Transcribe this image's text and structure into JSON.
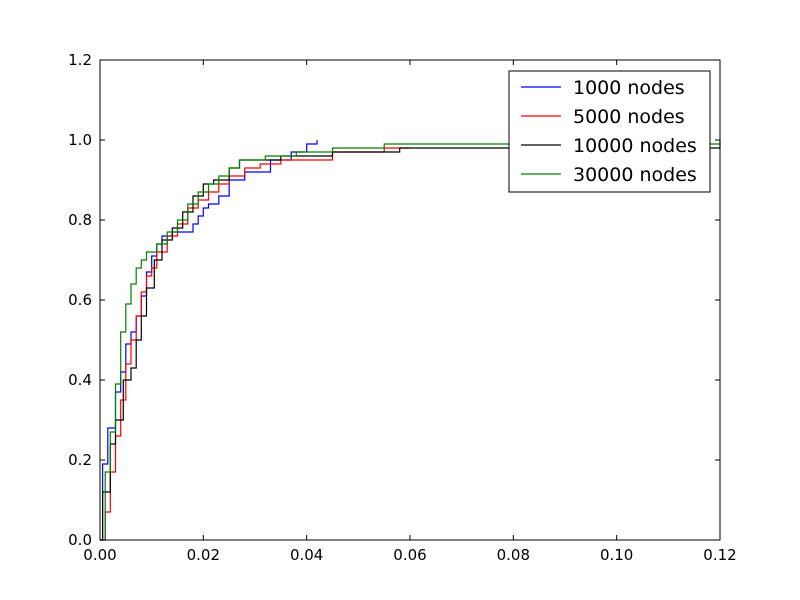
{
  "chart_data": {
    "type": "line",
    "title": "",
    "xlabel": "",
    "ylabel": "",
    "xlim": [
      0.0,
      0.12
    ],
    "ylim": [
      0.0,
      1.2
    ],
    "xticks": [
      "0.00",
      "0.02",
      "0.04",
      "0.06",
      "0.08",
      "0.10",
      "0.12"
    ],
    "yticks": [
      "0.0",
      "0.2",
      "0.4",
      "0.6",
      "0.8",
      "1.0",
      "1.2"
    ],
    "grid": false,
    "legend_position": "top-right",
    "series": [
      {
        "name": "1000 nodes",
        "color": "#0000ff",
        "x": [
          0.0,
          0.0005,
          0.0015,
          0.003,
          0.004,
          0.005,
          0.006,
          0.007,
          0.008,
          0.009,
          0.01,
          0.011,
          0.012,
          0.014,
          0.016,
          0.018,
          0.019,
          0.02,
          0.021,
          0.023,
          0.025,
          0.028,
          0.033,
          0.037,
          0.04,
          0.042
        ],
        "y": [
          0.0,
          0.19,
          0.28,
          0.37,
          0.42,
          0.49,
          0.52,
          0.56,
          0.61,
          0.67,
          0.71,
          0.74,
          0.76,
          0.77,
          0.77,
          0.79,
          0.81,
          0.83,
          0.84,
          0.86,
          0.9,
          0.92,
          0.95,
          0.97,
          0.99,
          1.0
        ]
      },
      {
        "name": "5000 nodes",
        "color": "#ff0000",
        "x": [
          0.0,
          0.001,
          0.002,
          0.003,
          0.004,
          0.005,
          0.006,
          0.007,
          0.008,
          0.009,
          0.01,
          0.011,
          0.013,
          0.015,
          0.017,
          0.019,
          0.021,
          0.023,
          0.025,
          0.028,
          0.031,
          0.035,
          0.045,
          0.055,
          0.06
        ],
        "y": [
          0.0,
          0.07,
          0.17,
          0.26,
          0.35,
          0.44,
          0.5,
          0.56,
          0.62,
          0.66,
          0.68,
          0.72,
          0.76,
          0.79,
          0.83,
          0.85,
          0.87,
          0.89,
          0.91,
          0.93,
          0.94,
          0.95,
          0.97,
          0.98,
          0.98
        ]
      },
      {
        "name": "10000 nodes",
        "color": "#000000",
        "x": [
          0.0,
          0.0005,
          0.002,
          0.003,
          0.0045,
          0.006,
          0.007,
          0.008,
          0.009,
          0.0105,
          0.012,
          0.014,
          0.016,
          0.018,
          0.02,
          0.022,
          0.025,
          0.027,
          0.03,
          0.035,
          0.04,
          0.045,
          0.055,
          0.058,
          0.07,
          0.12
        ],
        "y": [
          0.0,
          0.12,
          0.24,
          0.3,
          0.4,
          0.43,
          0.5,
          0.56,
          0.63,
          0.7,
          0.75,
          0.78,
          0.82,
          0.86,
          0.89,
          0.9,
          0.93,
          0.95,
          0.95,
          0.96,
          0.96,
          0.97,
          0.97,
          0.98,
          0.98,
          1.0
        ]
      },
      {
        "name": "30000 nodes",
        "color": "#008000",
        "x": [
          0.0,
          0.001,
          0.002,
          0.003,
          0.004,
          0.005,
          0.006,
          0.007,
          0.008,
          0.009,
          0.011,
          0.013,
          0.015,
          0.017,
          0.019,
          0.021,
          0.023,
          0.025,
          0.027,
          0.032,
          0.038,
          0.045,
          0.055,
          0.12
        ],
        "y": [
          0.0,
          0.17,
          0.27,
          0.39,
          0.52,
          0.59,
          0.64,
          0.68,
          0.7,
          0.72,
          0.74,
          0.77,
          0.8,
          0.84,
          0.87,
          0.89,
          0.91,
          0.93,
          0.95,
          0.96,
          0.97,
          0.98,
          0.99,
          0.99
        ]
      }
    ]
  }
}
